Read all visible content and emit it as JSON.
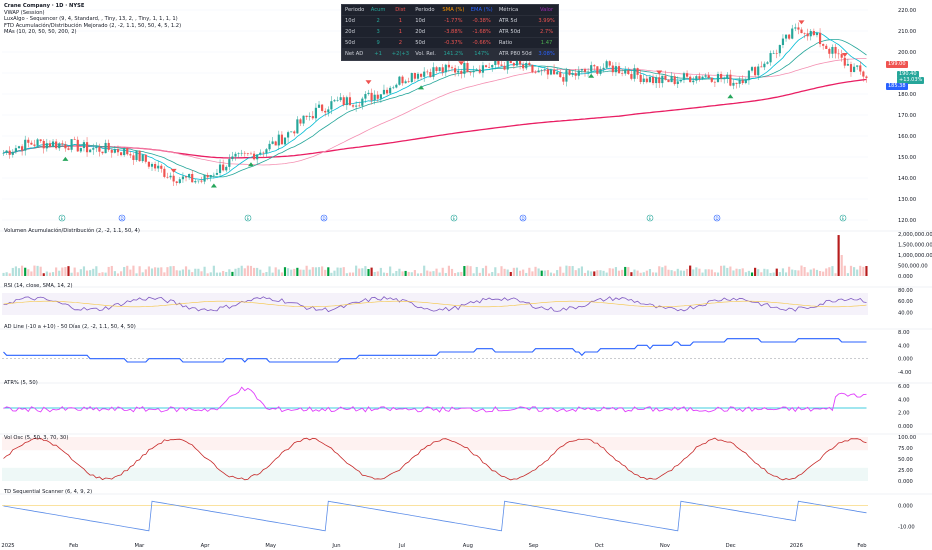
{
  "header": {
    "legend_lines": [
      "Crane Company · 1D · NYSE",
      "VWAP (Session)",
      "LuxAlgo - Sequencer (9, 4, Standard, , Tiny, 13, 2, , Tiny, 1, 1, 1, 1)",
      "FTD Acumulación/Distribución Mejorado (2, -2, 1.1, 50, 50, 4, 5, 1.2)",
      "MAs (10, 20, 50, 50, 200, 2)"
    ]
  },
  "stats_table": {
    "left": {
      "headers": [
        "Periodo",
        "Acum",
        "Dist"
      ],
      "rows": [
        [
          "10d",
          "2",
          "1"
        ],
        [
          "20d",
          "3",
          "1"
        ],
        [
          "50d",
          "9",
          "2"
        ]
      ],
      "footer": [
        "Net AD",
        "+1",
        "+2(+3"
      ]
    },
    "middle": {
      "headers": [
        "Periodo",
        "SMA (%)",
        "EMA (%)"
      ],
      "rows": [
        [
          "10d",
          "-1.77%",
          "-0.38%"
        ],
        [
          "20d",
          "-3.88%",
          "-1.68%"
        ],
        [
          "50d",
          "-0.37%",
          "-0.66%"
        ]
      ],
      "footer": [
        "Vol. Rel.",
        "141.2%",
        "147%"
      ]
    },
    "right": {
      "headers": [
        "Métrica",
        "Valor"
      ],
      "rows": [
        [
          "ATR 5d",
          "3.99%"
        ],
        [
          "ATR 50d",
          "2.7%"
        ],
        [
          "Ratio",
          "1.47"
        ]
      ],
      "footer": [
        "ATR P80 50d",
        "3.08%"
      ]
    }
  },
  "price_tags": [
    {
      "text": "199.00",
      "color": "#ef5350"
    },
    {
      "text": "190.40",
      "color": "#26a69a"
    },
    {
      "text": "+13.03%",
      "color": "#26a69a"
    },
    {
      "text": "185.38",
      "color": "#2962ff"
    }
  ],
  "panes": {
    "volume_title": "Volumen Acumulación/Distribución (2, -2, 1.1, 50, 4)",
    "rsi_title": "RSI (14, close, SMA, 14, 2)",
    "ad_title": "AD Line (-10 a +10) - 50 Días (2, -2, 1.1, 50, 4, 50)",
    "atr_title": "ATR% (5, 50)",
    "vd_title": "Vol Osc (5, 50, 3, 70, 30)",
    "td_title": "TD Sequential Scanner (6, 4, 9, 2)"
  },
  "axes": {
    "x_labels": [
      "2025",
      "Feb",
      "Mar",
      "Apr",
      "May",
      "Jun",
      "Jul",
      "Aug",
      "Sep",
      "Oct",
      "Nov",
      "Dec",
      "2026",
      "Feb"
    ],
    "price_ticks": [
      "220.00",
      "210.00",
      "200.00",
      "190.00",
      "180.00",
      "170.00",
      "160.00",
      "150.00",
      "140.00",
      "130.00",
      "120.00"
    ],
    "volume_ticks": [
      "2,000,000.00",
      "1,500,000.00",
      "1,000,000.00",
      "500,000.00",
      "0.000"
    ],
    "rsi_ticks": [
      "80.00",
      "60.00",
      "40.00"
    ],
    "ad_ticks": [
      "8.00",
      "4.00",
      "0.000",
      "-4.00"
    ],
    "atr_ticks": [
      "6.00",
      "4.00",
      "2.00",
      "0.000"
    ],
    "vd_ticks": [
      "100.00",
      "75.00",
      "50.00",
      "25.00",
      "0.000"
    ],
    "td_ticks": [
      "0.000",
      "-10.00"
    ]
  },
  "event_markers": [
    "E",
    "D",
    "E",
    "D",
    "E",
    "D",
    "E",
    "D",
    "E"
  ],
  "chart_data": {
    "type": "line",
    "x": [
      "2025-01",
      "2025-02",
      "2025-03",
      "2025-04",
      "2025-05",
      "2025-06",
      "2025-07",
      "2025-08",
      "2025-09",
      "2025-10",
      "2025-11",
      "2025-12",
      "2026-01",
      "2026-02"
    ],
    "series": [
      {
        "values": [
          152,
          158,
          149,
          138,
          157,
          175,
          186,
          195,
          190,
          191,
          188,
          186,
          210,
          190
        ]
      }
    ],
    "ylim": [
      120,
      220
    ]
  },
  "colors": {
    "up": "#26a69a",
    "down": "#ef5350",
    "ma_short": "#00bcd4",
    "ma_mid": "#26a69a",
    "ma_long": "#e91e63",
    "ma_slow": "#f48fb1",
    "rsi": "#7e57c2",
    "ad": "#2962ff",
    "atr": "#e040fb",
    "atr_base": "#00bcd4",
    "osc": "#c62828",
    "td": "#5c8de8"
  }
}
